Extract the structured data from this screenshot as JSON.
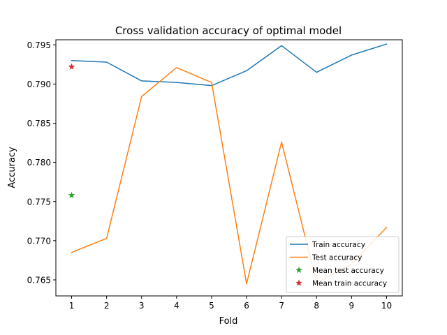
{
  "chart_data": {
    "type": "line",
    "title": "Cross validation accuracy of optimal model",
    "xlabel": "Fold",
    "ylabel": "Accuracy",
    "xlim": [
      0.55,
      10.45
    ],
    "ylim": [
      0.76295,
      0.79565
    ],
    "x": [
      1,
      2,
      3,
      4,
      5,
      6,
      7,
      8,
      9,
      10
    ],
    "x_ticks": [
      1,
      2,
      3,
      4,
      5,
      6,
      7,
      8,
      9,
      10
    ],
    "y_ticks": [
      0.765,
      0.77,
      0.775,
      0.78,
      0.785,
      0.79,
      0.795
    ],
    "y_tick_labels": [
      "0.765",
      "0.770",
      "0.775",
      "0.780",
      "0.785",
      "0.790",
      "0.795"
    ],
    "grid": false,
    "legend_position": "bottom-right",
    "series": [
      {
        "name": "Train accuracy",
        "kind": "line",
        "color": "#1f77b4",
        "values": [
          0.793,
          0.7928,
          0.7904,
          0.7902,
          0.7898,
          0.7917,
          0.7949,
          0.7915,
          0.7937,
          0.7951
        ]
      },
      {
        "name": "Test accuracy",
        "kind": "line",
        "color": "#ff7f0e",
        "values": [
          0.7685,
          0.7703,
          0.7884,
          0.7921,
          0.7902,
          0.7645,
          0.7826,
          0.7646,
          0.767,
          0.7717
        ]
      },
      {
        "name": "Mean test accuracy",
        "kind": "marker",
        "marker": "star",
        "color": "#2ca02c",
        "points": [
          [
            1,
            0.7758
          ]
        ]
      },
      {
        "name": "Mean train accuracy",
        "kind": "marker",
        "marker": "star",
        "color": "#d62728",
        "points": [
          [
            1,
            0.7922
          ]
        ]
      }
    ]
  }
}
